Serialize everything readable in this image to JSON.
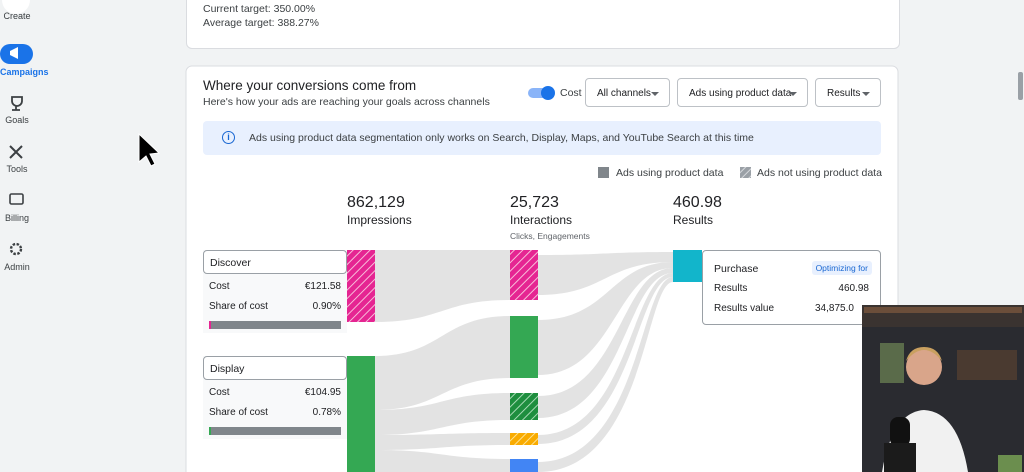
{
  "sidebar": {
    "items": [
      "Create",
      "Campaigns",
      "Goals",
      "Tools",
      "Billing",
      "Admin"
    ]
  },
  "target_card": {
    "current": "Current target: 350.00%",
    "average": "Average target: 388.27%"
  },
  "panel": {
    "title": "Where your conversions come from",
    "subtitle": "Here's how your ads are reaching your goals across channels",
    "toggle_label": "Cost",
    "dropdowns": [
      "All channels",
      "Ads using product data",
      "Results"
    ],
    "info": "Ads using product data segmentation only works on Search, Display, Maps, and YouTube Search at this time",
    "legend": [
      "Ads using product data",
      "Ads not using product data"
    ],
    "columns": [
      {
        "value": "862,129",
        "label": "Impressions"
      },
      {
        "value": "25,723",
        "label": "Interactions",
        "note": "Clicks, Engagements"
      },
      {
        "value": "460.98",
        "label": "Results"
      }
    ],
    "channels": [
      {
        "name": "Discover",
        "rows": [
          [
            "Cost",
            "€121.58"
          ],
          [
            "Share of cost",
            "0.90%"
          ]
        ]
      },
      {
        "name": "Display",
        "rows": [
          [
            "Cost",
            "€104.95"
          ],
          [
            "Share of cost",
            "0.78%"
          ]
        ]
      }
    ],
    "result_card": {
      "name": "Purchase",
      "badge": "Optimizing for",
      "rows": [
        [
          "Results",
          "460.98"
        ],
        [
          "Results value",
          "34,875.0"
        ]
      ]
    }
  }
}
